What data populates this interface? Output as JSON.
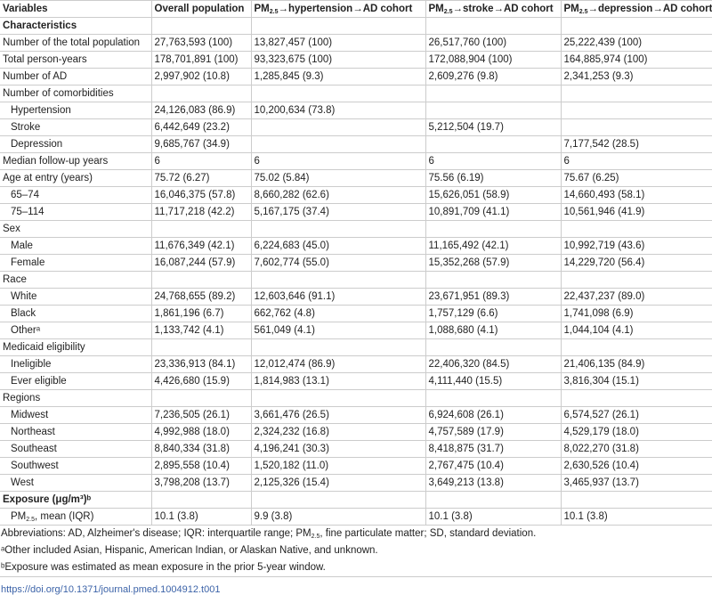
{
  "header": [
    "Variables",
    "Overall population",
    "PM2.5→hypertension→AD cohort",
    "PM2.5→stroke→AD cohort",
    "PM2.5→depression→AD cohort"
  ],
  "rows": [
    {
      "type": "sec",
      "cells": [
        "Characteristics",
        "",
        "",
        "",
        ""
      ]
    },
    {
      "cells": [
        "Number of the total population",
        "27,763,593 (100)",
        "13,827,457 (100)",
        "26,517,760 (100)",
        "25,222,439 (100)"
      ]
    },
    {
      "cells": [
        "Total person-years",
        "178,701,891 (100)",
        "93,323,675 (100)",
        "172,088,904 (100)",
        "164,885,974 (100)"
      ]
    },
    {
      "cells": [
        "Number of AD",
        "2,997,902 (10.8)",
        "1,285,845 (9.3)",
        "2,609,276 (9.8)",
        "2,341,253 (9.3)"
      ]
    },
    {
      "cells": [
        "Number of comorbidities",
        "",
        "",
        "",
        ""
      ]
    },
    {
      "ind": true,
      "cells": [
        "Hypertension",
        "24,126,083 (86.9)",
        "10,200,634 (73.8)",
        "",
        ""
      ]
    },
    {
      "ind": true,
      "cells": [
        "Stroke",
        "6,442,649 (23.2)",
        "",
        "5,212,504 (19.7)",
        ""
      ]
    },
    {
      "ind": true,
      "cells": [
        "Depression",
        "9,685,767 (34.9)",
        "",
        "",
        "7,177,542 (28.5)"
      ]
    },
    {
      "cells": [
        "Median follow-up years",
        "6",
        "6",
        "6",
        "6"
      ]
    },
    {
      "cells": [
        "Age at entry (years)",
        "75.72 (6.27)",
        "75.02 (5.84)",
        "75.56 (6.19)",
        "75.67 (6.25)"
      ]
    },
    {
      "ind": true,
      "cells": [
        "65–74",
        "16,046,375 (57.8)",
        "8,660,282 (62.6)",
        "15,626,051 (58.9)",
        "14,660,493 (58.1)"
      ]
    },
    {
      "ind": true,
      "cells": [
        "75–114",
        "11,717,218 (42.2)",
        "5,167,175 (37.4)",
        "10,891,709 (41.1)",
        "10,561,946 (41.9)"
      ]
    },
    {
      "cells": [
        "Sex",
        "",
        "",
        "",
        ""
      ]
    },
    {
      "ind": true,
      "cells": [
        "Male",
        "11,676,349 (42.1)",
        "6,224,683 (45.0)",
        "11,165,492 (42.1)",
        "10,992,719 (43.6)"
      ]
    },
    {
      "ind": true,
      "cells": [
        "Female",
        "16,087,244 (57.9)",
        "7,602,774 (55.0)",
        "15,352,268 (57.9)",
        "14,229,720 (56.4)"
      ]
    },
    {
      "cells": [
        "Race",
        "",
        "",
        "",
        ""
      ]
    },
    {
      "ind": true,
      "cells": [
        "White",
        "24,768,655 (89.2)",
        "12,603,646 (91.1)",
        "23,671,951 (89.3)",
        "22,437,237 (89.0)"
      ]
    },
    {
      "ind": true,
      "cells": [
        "Black",
        "1,861,196 (6.7)",
        "662,762 (4.8)",
        "1,757,129 (6.6)",
        "1,741,098 (6.9)"
      ]
    },
    {
      "ind": true,
      "cells": [
        "Otherᵃ",
        "1,133,742 (4.1)",
        "561,049 (4.1)",
        "1,088,680 (4.1)",
        "1,044,104 (4.1)"
      ]
    },
    {
      "cells": [
        "Medicaid eligibility",
        "",
        "",
        "",
        ""
      ]
    },
    {
      "ind": true,
      "cells": [
        "Ineligible",
        "23,336,913 (84.1)",
        "12,012,474 (86.9)",
        "22,406,320 (84.5)",
        "21,406,135 (84.9)"
      ]
    },
    {
      "ind": true,
      "cells": [
        "Ever eligible",
        "4,426,680 (15.9)",
        "1,814,983 (13.1)",
        "4,111,440 (15.5)",
        "3,816,304 (15.1)"
      ]
    },
    {
      "cells": [
        "Regions",
        "",
        "",
        "",
        ""
      ]
    },
    {
      "ind": true,
      "cells": [
        "Midwest",
        "7,236,505 (26.1)",
        "3,661,476 (26.5)",
        "6,924,608 (26.1)",
        "6,574,527 (26.1)"
      ]
    },
    {
      "ind": true,
      "cells": [
        "Northeast",
        "4,992,988 (18.0)",
        "2,324,232 (16.8)",
        "4,757,589 (17.9)",
        "4,529,179 (18.0)"
      ]
    },
    {
      "ind": true,
      "cells": [
        "Southeast",
        "8,840,334 (31.8)",
        "4,196,241 (30.3)",
        "8,418,875 (31.7)",
        "8,022,270 (31.8)"
      ]
    },
    {
      "ind": true,
      "cells": [
        "Southwest",
        "2,895,558 (10.4)",
        "1,520,182 (11.0)",
        "2,767,475 (10.4)",
        "2,630,526 (10.4)"
      ]
    },
    {
      "ind": true,
      "cells": [
        "West",
        "3,798,208 (13.7)",
        "2,125,326 (15.4)",
        "3,649,213 (13.8)",
        "3,465,937 (13.7)"
      ]
    },
    {
      "type": "sec",
      "cells": [
        "Exposure (μg/m³)ᵇ",
        "",
        "",
        "",
        ""
      ]
    },
    {
      "ind": true,
      "cells": [
        "PM2.5, mean (IQR)",
        "10.1 (3.8)",
        "9.9 (3.8)",
        "10.1 (3.8)",
        "10.1 (3.8)"
      ]
    }
  ],
  "footnotes": [
    "Abbreviations: AD, Alzheimer's disease; IQR: interquartile range; PM2.5, fine particulate matter; SD, standard deviation.",
    "ᵃOther included Asian, Hispanic, American Indian, or Alaskan Native, and unknown.",
    "ᵇExposure was estimated as mean exposure in the prior 5-year window."
  ],
  "doi_link": "https://doi.org/10.1371/journal.pmed.1004912.t001"
}
